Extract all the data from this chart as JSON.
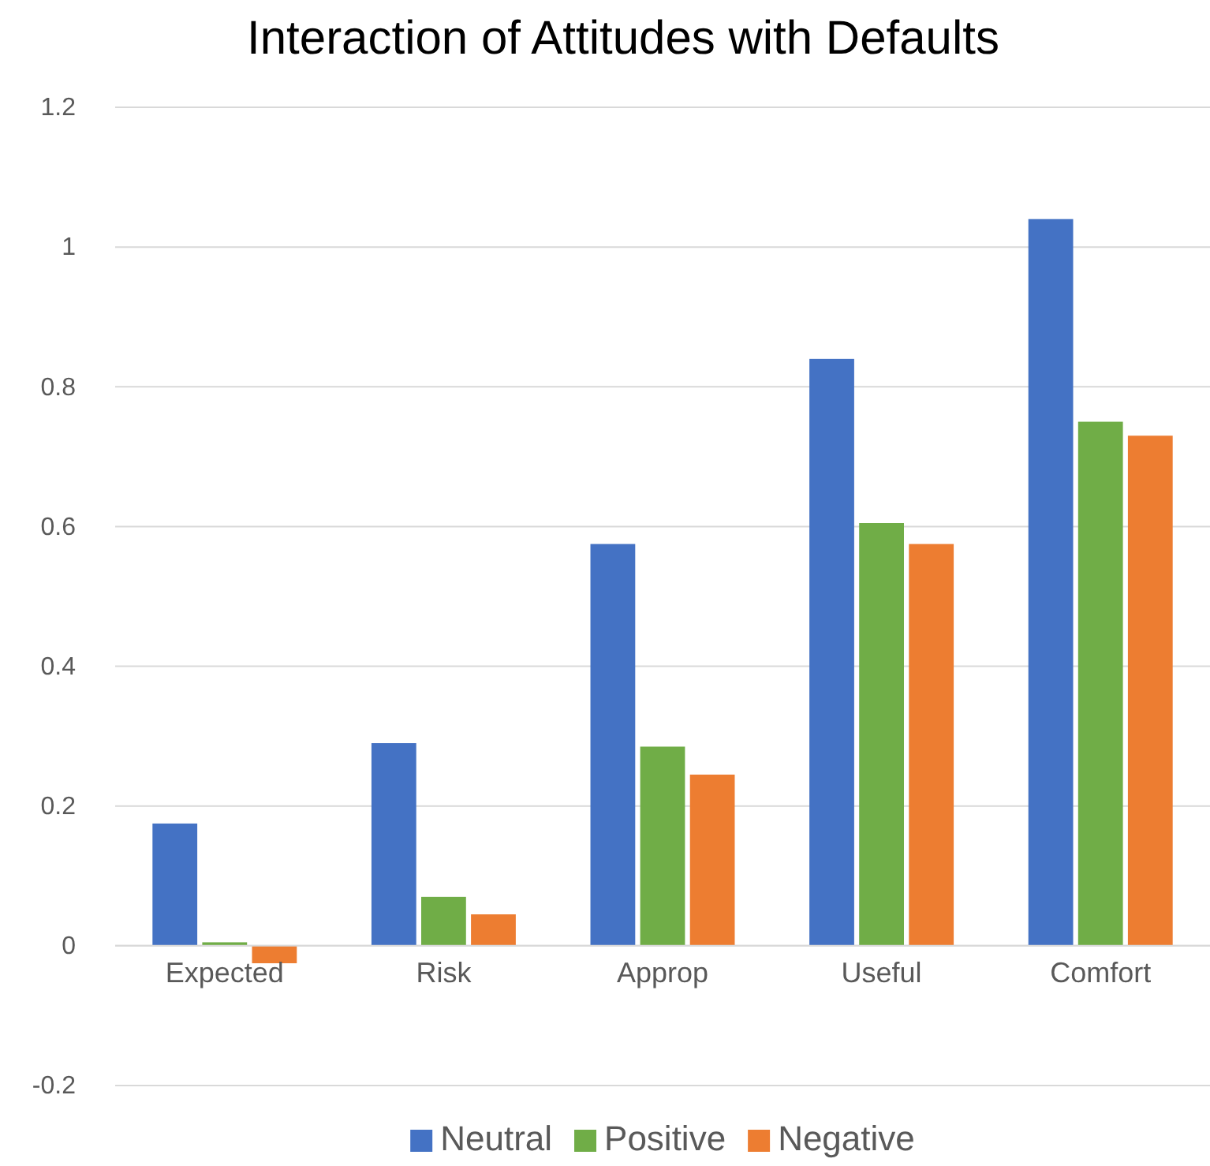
{
  "chart_data": {
    "type": "bar",
    "title": "Interaction of Attitudes with Defaults",
    "categories": [
      "Expected",
      "Risk",
      "Approp",
      "Useful",
      "Comfort"
    ],
    "series": [
      {
        "name": "Neutral",
        "color": "#4472c4",
        "values": [
          0.175,
          0.29,
          0.575,
          0.84,
          1.04
        ]
      },
      {
        "name": "Positive",
        "color": "#70ad47",
        "values": [
          0.005,
          0.07,
          0.285,
          0.605,
          0.75
        ]
      },
      {
        "name": "Negative",
        "color": "#ed7d31",
        "values": [
          -0.025,
          0.045,
          0.245,
          0.575,
          0.73
        ]
      }
    ],
    "ylim": [
      -0.2,
      1.2
    ],
    "yticks": [
      -0.2,
      0,
      0.2,
      0.4,
      0.6,
      0.8,
      1,
      1.2
    ],
    "grid": "y",
    "legend": "bottom"
  }
}
